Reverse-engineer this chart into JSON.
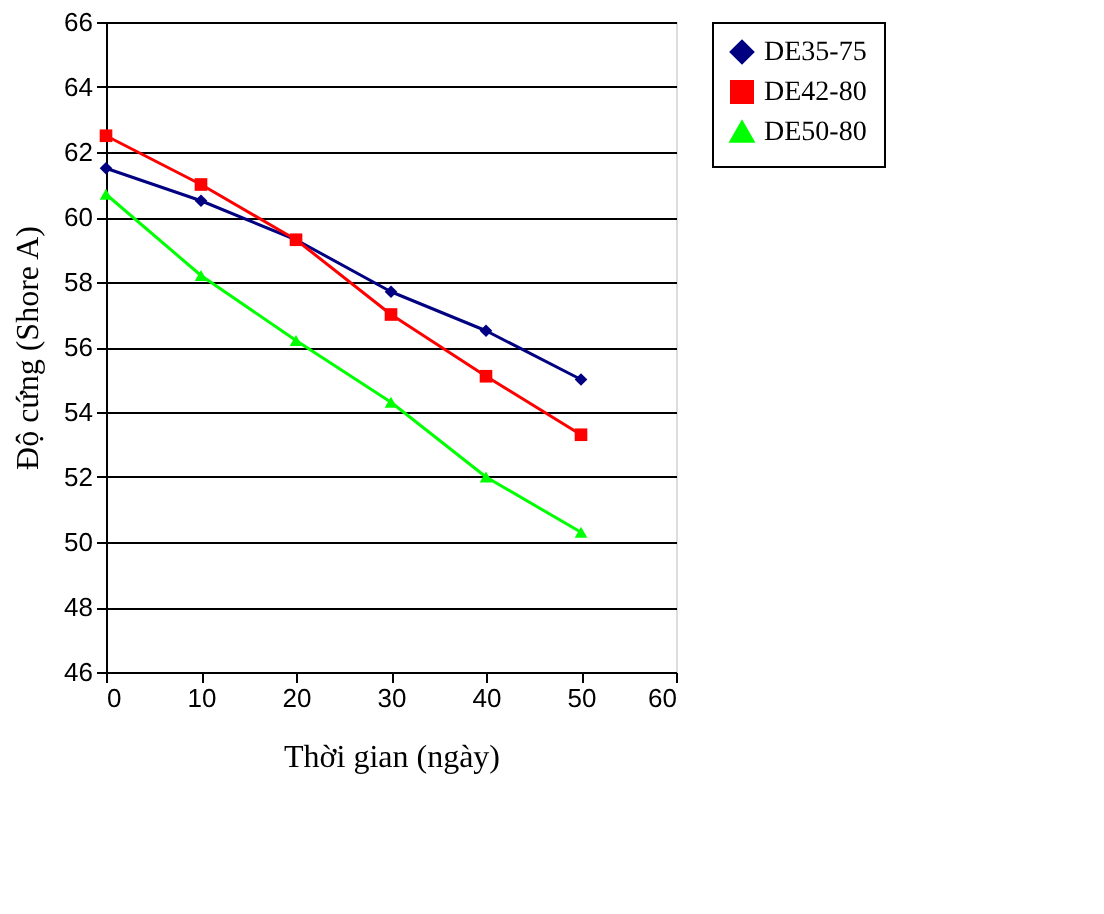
{
  "chart_data": {
    "type": "line",
    "xlabel": "Thời gian (ngày)",
    "ylabel": "Độ cứng (Shore A)",
    "x": [
      0,
      10,
      20,
      30,
      40,
      50
    ],
    "series": [
      {
        "name": "DE35-75",
        "color": "#000080",
        "marker": "diamond",
        "values": [
          61.5,
          60.5,
          59.3,
          57.7,
          56.5,
          55.0
        ]
      },
      {
        "name": "DE42-80",
        "color": "#ff0000",
        "marker": "square",
        "values": [
          62.5,
          61.0,
          59.3,
          57.0,
          55.1,
          53.3
        ]
      },
      {
        "name": "DE50-80",
        "color": "#00ff00",
        "marker": "triangle",
        "values": [
          60.7,
          58.2,
          56.2,
          54.3,
          52.0,
          50.3
        ]
      }
    ],
    "xlim": [
      0,
      60
    ],
    "xticks": [
      0,
      10,
      20,
      30,
      40,
      50,
      60
    ],
    "ylim": [
      46,
      66
    ],
    "yticks": [
      46,
      48,
      50,
      52,
      54,
      56,
      58,
      60,
      62,
      64,
      66
    ],
    "grid": "y",
    "legend": "right",
    "line_style": "solid"
  }
}
